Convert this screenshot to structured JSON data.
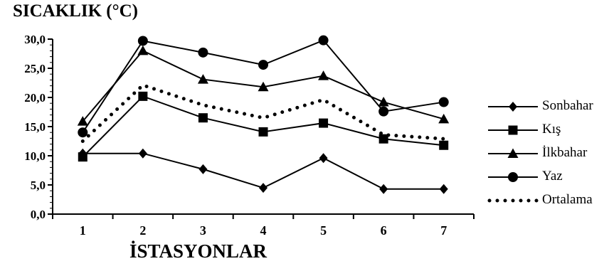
{
  "chart_data": {
    "type": "line",
    "title": "",
    "ylabel": "SICAKLIK (°C)",
    "xlabel": "İSTASYONLAR",
    "categories": [
      "1",
      "2",
      "3",
      "4",
      "5",
      "6",
      "7"
    ],
    "ylim": [
      0,
      30
    ],
    "yticks": [
      "0,0",
      "5,0",
      "10,0",
      "15,0",
      "20,0",
      "25,0",
      "30,0"
    ],
    "grid": false,
    "legend_position": "right",
    "series": [
      {
        "name": "Sonbahar",
        "marker": "diamond",
        "line": "solid",
        "values": [
          10.4,
          10.4,
          7.7,
          4.5,
          9.6,
          4.3,
          4.3
        ]
      },
      {
        "name": "Kış",
        "marker": "square",
        "line": "solid",
        "values": [
          9.8,
          20.2,
          16.5,
          14.1,
          15.6,
          12.9,
          11.8
        ]
      },
      {
        "name": "İlkbahar",
        "marker": "triangle",
        "line": "solid",
        "values": [
          15.9,
          28.0,
          23.1,
          21.8,
          23.7,
          19.2,
          16.3
        ]
      },
      {
        "name": "Yaz",
        "marker": "circle",
        "line": "solid",
        "values": [
          14.0,
          29.7,
          27.7,
          25.6,
          29.8,
          17.6,
          19.2
        ]
      },
      {
        "name": "Ortalama",
        "marker": "none",
        "line": "dotted",
        "values": [
          12.5,
          22.1,
          18.7,
          16.5,
          19.6,
          13.6,
          12.9
        ]
      }
    ]
  }
}
